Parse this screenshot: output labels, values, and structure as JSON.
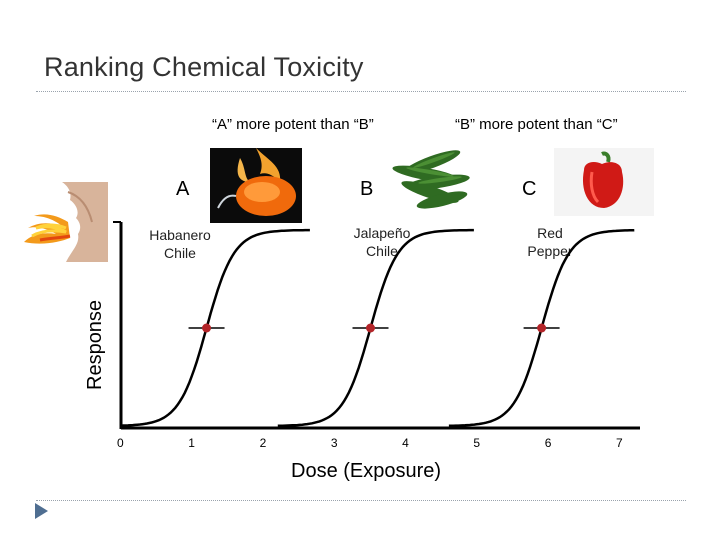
{
  "slide": {
    "title": "Ranking Chemical Toxicity"
  },
  "comparisons": {
    "a_vs_b": "“A” more potent than “B”",
    "b_vs_c": "“B” more potent than “C”"
  },
  "peppers": [
    {
      "letter": "A",
      "name_line1": "Habanero",
      "name_line2": "Chile"
    },
    {
      "letter": "B",
      "name_line1": "Jalapeño",
      "name_line2": "Chile"
    },
    {
      "letter": "C",
      "name_line1": "Red",
      "name_line2": "Pepper"
    }
  ],
  "chart_data": {
    "type": "line",
    "xlabel": "Dose (Exposure)",
    "ylabel": "Response",
    "x_ticks": [
      "0",
      "1",
      "2",
      "3",
      "4",
      "5",
      "6",
      "7"
    ],
    "xlim": [
      0,
      7
    ],
    "ylim": [
      0,
      1
    ],
    "series": [
      {
        "label": "A",
        "midpoint_dose": 1.2
      },
      {
        "label": "B",
        "midpoint_dose": 3.5
      },
      {
        "label": "C",
        "midpoint_dose": 5.9
      }
    ]
  },
  "colors": {
    "title": "#333333",
    "curve": "#000000",
    "midpoint_marker": "#b32428",
    "rule": "#9aa3ad",
    "bullet": "#4f6e91"
  }
}
